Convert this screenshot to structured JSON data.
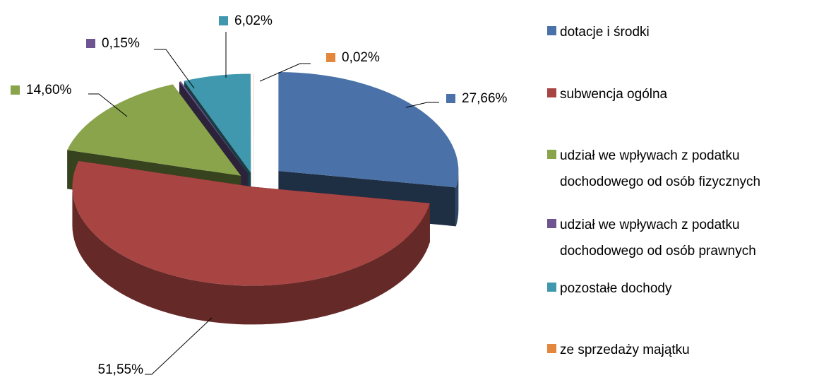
{
  "chart_data": {
    "type": "pie3d",
    "categories": [
      "dotacje i środki",
      "subwencja ogólna",
      "udział we wpływach z podatku dochodowego od osób fizycznych",
      "udział we wpływach z podatku dochodowego od osób prawnych",
      "pozostałe dochody",
      "ze sprzedaży majątku"
    ],
    "values": [
      27.66,
      51.55,
      14.6,
      0.15,
      6.02,
      0.02
    ],
    "value_labels": [
      "27,66%",
      "51,55%",
      "14,60%",
      "0,15%",
      "6,02%",
      "0,02%"
    ],
    "colors": [
      "#4a72a8",
      "#a84442",
      "#89a44a",
      "#6e5490",
      "#3f98ad",
      "#e2873c"
    ],
    "legend": "right"
  }
}
